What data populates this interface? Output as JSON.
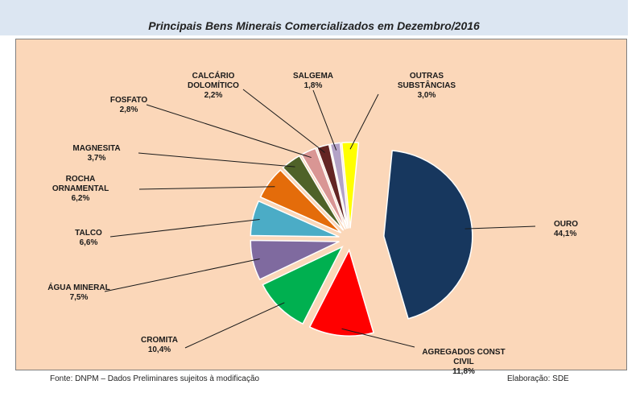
{
  "chart_data": {
    "type": "pie",
    "title": "Principais Bens Minerais Comercializados em Dezembro/2016",
    "source": "Fonte: DNPM – Dados Preliminares sujeitos à modificação",
    "credit": "Elaboração: SDE",
    "exploded": true,
    "slices": [
      {
        "label": [
          "OURO"
        ],
        "value_label": "44,1%",
        "value": 44.1,
        "color": "#17375e"
      },
      {
        "label": [
          "AGREGADOS CONST",
          "CIVIL"
        ],
        "value_label": "11,8%",
        "value": 11.8,
        "color": "#ff0000"
      },
      {
        "label": [
          "CROMITA"
        ],
        "value_label": "10,4%",
        "value": 10.4,
        "color": "#00b050"
      },
      {
        "label": [
          "ÁGUA MINERAL"
        ],
        "value_label": "7,5%",
        "value": 7.5,
        "color": "#7f6a9f"
      },
      {
        "label": [
          "TALCO"
        ],
        "value_label": "6,6%",
        "value": 6.6,
        "color": "#4bacc6"
      },
      {
        "label": [
          "ROCHA",
          "ORNAMENTAL"
        ],
        "value_label": "6,2%",
        "value": 6.2,
        "color": "#e46c0a"
      },
      {
        "label": [
          "MAGNESITA"
        ],
        "value_label": "3,7%",
        "value": 3.7,
        "color": "#4f6228"
      },
      {
        "label": [
          "FOSFATO"
        ],
        "value_label": "2,8%",
        "value": 2.8,
        "color": "#d99694"
      },
      {
        "label": [
          "CALCÁRIO",
          "DOLOMÍTICO"
        ],
        "value_label": "2,2%",
        "value": 2.2,
        "color": "#632523"
      },
      {
        "label": [
          "SALGEMA"
        ],
        "value_label": "1,8%",
        "value": 1.8,
        "color": "#b3a2c7"
      },
      {
        "label": [
          "OUTRAS",
          "SUBSTÂNCIAS"
        ],
        "value_label": "3,0%",
        "value": 3.0,
        "color": "#ffff00"
      }
    ]
  }
}
